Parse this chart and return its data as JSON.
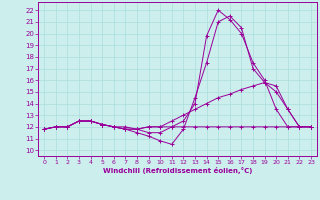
{
  "bg_color": "#cceeed",
  "line_color": "#990099",
  "grid_color": "#aadddd",
  "xlabel": "Windchill (Refroidissement éolien,°C)",
  "ylabel_ticks": [
    10,
    11,
    12,
    13,
    14,
    15,
    16,
    17,
    18,
    19,
    20,
    21,
    22
  ],
  "xlim": [
    -0.5,
    23.5
  ],
  "ylim": [
    9.5,
    22.7
  ],
  "series": [
    {
      "x": [
        0,
        1,
        2,
        3,
        4,
        5,
        6,
        7,
        8,
        9,
        10,
        11,
        12,
        13,
        14,
        15,
        16,
        17,
        18,
        19,
        20,
        21,
        22,
        23
      ],
      "y": [
        11.8,
        12.0,
        12.0,
        12.5,
        12.5,
        12.2,
        12.0,
        12.0,
        11.8,
        11.5,
        11.5,
        12.0,
        12.0,
        12.0,
        12.0,
        12.0,
        12.0,
        12.0,
        12.0,
        12.0,
        12.0,
        12.0,
        12.0,
        12.0
      ]
    },
    {
      "x": [
        0,
        1,
        2,
        3,
        4,
        5,
        6,
        7,
        8,
        9,
        10,
        11,
        12,
        13,
        14,
        15,
        16,
        17,
        18,
        19,
        20,
        21,
        22,
        23
      ],
      "y": [
        11.8,
        12.0,
        12.0,
        12.5,
        12.5,
        12.2,
        12.0,
        11.8,
        11.5,
        11.2,
        10.8,
        10.5,
        11.8,
        14.5,
        17.5,
        21.0,
        21.5,
        20.5,
        17.0,
        15.8,
        15.0,
        13.5,
        12.0,
        12.0
      ]
    },
    {
      "x": [
        0,
        1,
        2,
        3,
        4,
        5,
        6,
        7,
        8,
        9,
        10,
        11,
        12,
        13,
        14,
        15,
        16,
        17,
        18,
        19,
        20,
        21,
        22,
        23
      ],
      "y": [
        11.8,
        12.0,
        12.0,
        12.5,
        12.5,
        12.2,
        12.0,
        11.8,
        11.8,
        12.0,
        12.0,
        12.0,
        12.5,
        14.0,
        19.8,
        22.0,
        21.2,
        20.0,
        17.5,
        16.0,
        13.5,
        12.0,
        12.0,
        12.0
      ]
    },
    {
      "x": [
        0,
        1,
        2,
        3,
        4,
        5,
        6,
        7,
        8,
        9,
        10,
        11,
        12,
        13,
        14,
        15,
        16,
        17,
        18,
        19,
        20,
        21,
        22,
        23
      ],
      "y": [
        11.8,
        12.0,
        12.0,
        12.5,
        12.5,
        12.2,
        12.0,
        11.8,
        11.8,
        12.0,
        12.0,
        12.5,
        13.0,
        13.5,
        14.0,
        14.5,
        14.8,
        15.2,
        15.5,
        15.8,
        15.5,
        13.5,
        12.0,
        12.0
      ]
    }
  ]
}
